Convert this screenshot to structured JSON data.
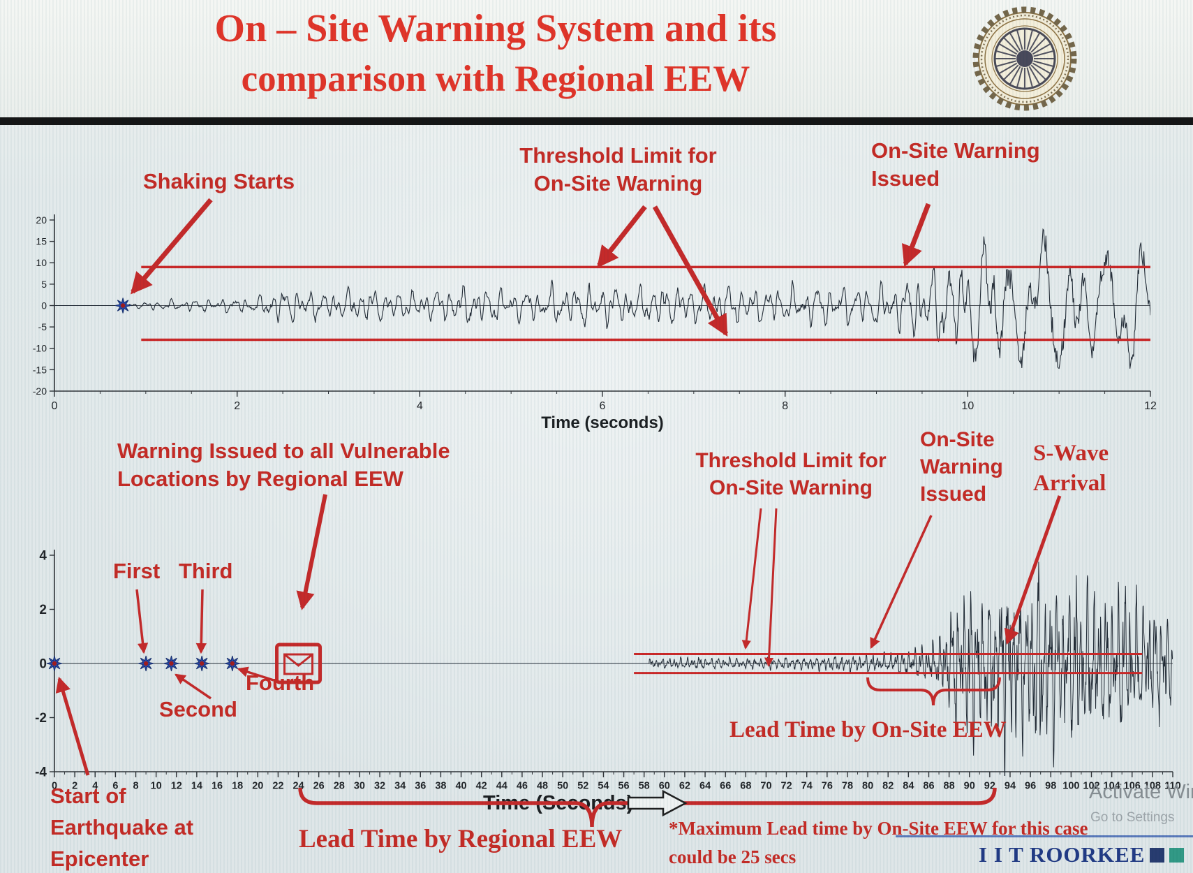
{
  "slide": {
    "title_line1": "On – Site Warning System and its",
    "title_line2": "comparison with Regional EEW",
    "logo_name": "IIT Roorkee seal"
  },
  "colors": {
    "title_red": "#e02a1e",
    "annotation_red": "#c2201a",
    "threshold_red": "#c81d1d",
    "waveform_dark": "#17202b",
    "star_blue": "#1b3faa",
    "star_center_red": "#9c1212",
    "brand_navy": "#16307e",
    "brand_teal": "#27947f"
  },
  "annotations": {
    "shaking_starts": "Shaking Starts",
    "threshold_top_l1": "Threshold Limit for",
    "threshold_top_l2": "On-Site Warning",
    "onsite_top_l1": "On-Site Warning",
    "onsite_top_l2": "Issued",
    "regional_warning_l1": "Warning Issued to all Vulnerable",
    "regional_warning_l2": "Locations by Regional EEW",
    "first": "First",
    "second": "Second",
    "third": "Third",
    "fourth": "Fourth",
    "epicenter_l1": "Start of",
    "epicenter_l2": "Earthquake at",
    "epicenter_l3": "Epicenter",
    "threshold_bottom_l1": "Threshold Limit for",
    "threshold_bottom_l2": "On-Site Warning",
    "onsite_bottom_l1": "On-Site",
    "onsite_bottom_l2": "Warning",
    "onsite_bottom_l3": "Issued",
    "swave_l1": "S-Wave",
    "swave_l2": "Arrival",
    "lead_onsite": "Lead Time by On-Site EEW",
    "lead_regional": "Lead Time by Regional EEW",
    "footnote_l1": "*Maximum Lead time by On-Site EEW for this case",
    "footnote_l2": "could be 25 secs"
  },
  "footer": {
    "activate_line1": "Activate Win",
    "activate_line2": "Go to Settings",
    "brand": "I I T ROORKEE"
  },
  "chart_data": [
    {
      "type": "line",
      "name": "on-site accelerogram, zoomed first 12 seconds",
      "xlabel": "Time (seconds)",
      "xlim": [
        0,
        12
      ],
      "xticks": [
        0,
        2,
        4,
        6,
        8,
        10,
        12
      ],
      "ylim": [
        -20,
        20
      ],
      "yticks": [
        -20,
        -15,
        -10,
        -5,
        0,
        5,
        10,
        15,
        20
      ],
      "grid": false,
      "threshold": {
        "upper": 9,
        "lower": -8,
        "range": [
          0.95,
          12
        ]
      },
      "star_markers_t": [
        0.75
      ],
      "events": {
        "shaking_starts_t": 0.75,
        "onsite_warning_issued_t": 9.4
      },
      "waveform_envelope": [
        [
          0.75,
          0.3
        ],
        [
          1.1,
          1.1
        ],
        [
          1.7,
          1.4
        ],
        [
          2.2,
          1.8
        ],
        [
          2.55,
          4.4
        ],
        [
          2.9,
          3.0
        ],
        [
          3.4,
          3.6
        ],
        [
          4,
          3.4
        ],
        [
          4.6,
          4.4
        ],
        [
          5.2,
          3.8
        ],
        [
          5.8,
          4.8
        ],
        [
          6.4,
          4.2
        ],
        [
          7,
          4.6
        ],
        [
          7.6,
          3.9
        ],
        [
          8.2,
          4.3
        ],
        [
          8.8,
          4.6
        ],
        [
          9.2,
          5.2
        ],
        [
          9.5,
          7.5
        ],
        [
          9.9,
          11
        ],
        [
          10.3,
          16
        ],
        [
          10.7,
          14
        ],
        [
          11.1,
          17
        ],
        [
          11.5,
          12
        ],
        [
          11.8,
          16
        ],
        [
          12,
          14
        ]
      ]
    },
    {
      "type": "line",
      "name": "regional accelerogram with EEW timeline, 110 seconds",
      "xlabel": "Time (Seconds)",
      "xlim": [
        0,
        110
      ],
      "xtick_step": 2,
      "ylim": [
        -4,
        4
      ],
      "yticks": [
        -4,
        -2,
        0,
        2,
        4
      ],
      "grid": false,
      "threshold": {
        "upper": 0.35,
        "lower": -0.35,
        "range": [
          57,
          107
        ]
      },
      "star_markers_t": [
        0,
        9,
        11.5,
        14.5,
        17.5
      ],
      "events": {
        "epicenter_t": 0,
        "p_detection_stations_t": [
          9,
          11.5,
          14.5,
          17.5
        ],
        "regional_warning_issued_t": 24,
        "waveform_onset_t": 58.5,
        "onsite_warning_issued_t": 80,
        "s_wave_arrival_t": 93,
        "lead_time_onsite_range_t": [
          80,
          93
        ],
        "lead_time_regional_range_t": [
          24,
          93
        ],
        "max_onsite_lead_time_secs": 25
      },
      "waveform_envelope": [
        [
          58.5,
          0.16
        ],
        [
          63,
          0.2
        ],
        [
          68,
          0.18
        ],
        [
          73,
          0.22
        ],
        [
          78,
          0.26
        ],
        [
          82,
          0.34
        ],
        [
          85,
          0.5
        ],
        [
          87,
          0.9
        ],
        [
          88.5,
          2.1
        ],
        [
          90,
          2.8
        ],
        [
          91.5,
          2.2
        ],
        [
          93,
          3.0
        ],
        [
          95,
          2.5
        ],
        [
          97,
          3.1
        ],
        [
          99,
          2.6
        ],
        [
          101,
          2.9
        ],
        [
          103,
          2.3
        ],
        [
          105,
          2.6
        ],
        [
          107,
          2.1
        ],
        [
          109,
          1.8
        ],
        [
          110,
          1.5
        ]
      ]
    }
  ]
}
